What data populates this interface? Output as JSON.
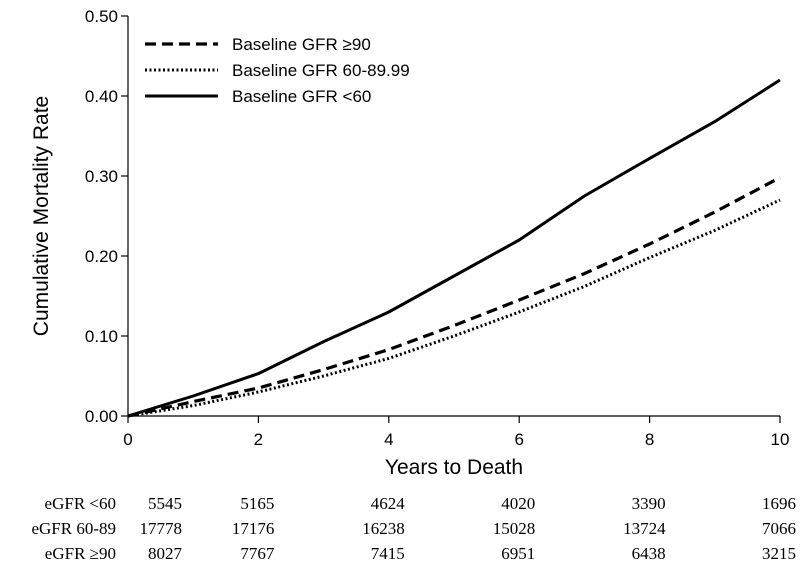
{
  "chart_data": {
    "type": "line",
    "title": "",
    "xlabel": "Years to Death",
    "ylabel": "Cumulative Mortality Rate",
    "xlim": [
      0,
      10
    ],
    "ylim": [
      0,
      0.5
    ],
    "xticks": [
      0,
      2,
      4,
      6,
      8,
      10
    ],
    "yticks": [
      0.0,
      0.1,
      0.2,
      0.3,
      0.4,
      0.5
    ],
    "xtick_labels": [
      "0",
      "2",
      "4",
      "6",
      "8",
      "10"
    ],
    "ytick_labels": [
      "0.00",
      "0.10",
      "0.20",
      "0.30",
      "0.40",
      "0.50"
    ],
    "grid": false,
    "legend_position": "top-left",
    "series": [
      {
        "name": "Baseline GFR ≥90",
        "style": "dashed",
        "x": [
          0,
          1,
          2,
          3,
          4,
          5,
          6,
          7,
          8,
          9,
          10
        ],
        "y": [
          0.0,
          0.018,
          0.035,
          0.058,
          0.083,
          0.113,
          0.145,
          0.178,
          0.215,
          0.255,
          0.298
        ]
      },
      {
        "name": "Baseline GFR 60-89.99",
        "style": "dotted",
        "x": [
          0,
          1,
          2,
          3,
          4,
          5,
          6,
          7,
          8,
          9,
          10
        ],
        "y": [
          0.0,
          0.013,
          0.03,
          0.05,
          0.072,
          0.1,
          0.13,
          0.162,
          0.198,
          0.232,
          0.27
        ]
      },
      {
        "name": "Baseline GFR <60",
        "style": "solid",
        "x": [
          0,
          1,
          2,
          3,
          4,
          5,
          6,
          7,
          8,
          9,
          10
        ],
        "y": [
          0.0,
          0.025,
          0.053,
          0.093,
          0.13,
          0.175,
          0.22,
          0.275,
          0.322,
          0.368,
          0.42
        ]
      }
    ],
    "risk_table": {
      "rows": [
        {
          "label": "eGFR <60",
          "values": [
            "5545",
            "5165",
            "4624",
            "4020",
            "3390",
            "1696"
          ]
        },
        {
          "label": "eGFR 60-89",
          "values": [
            "17778",
            "17176",
            "16238",
            "15028",
            "13724",
            "7066"
          ]
        },
        {
          "label": "eGFR ≥90",
          "values": [
            "8027",
            "7767",
            "7415",
            "6951",
            "6438",
            "3215"
          ]
        }
      ]
    }
  }
}
